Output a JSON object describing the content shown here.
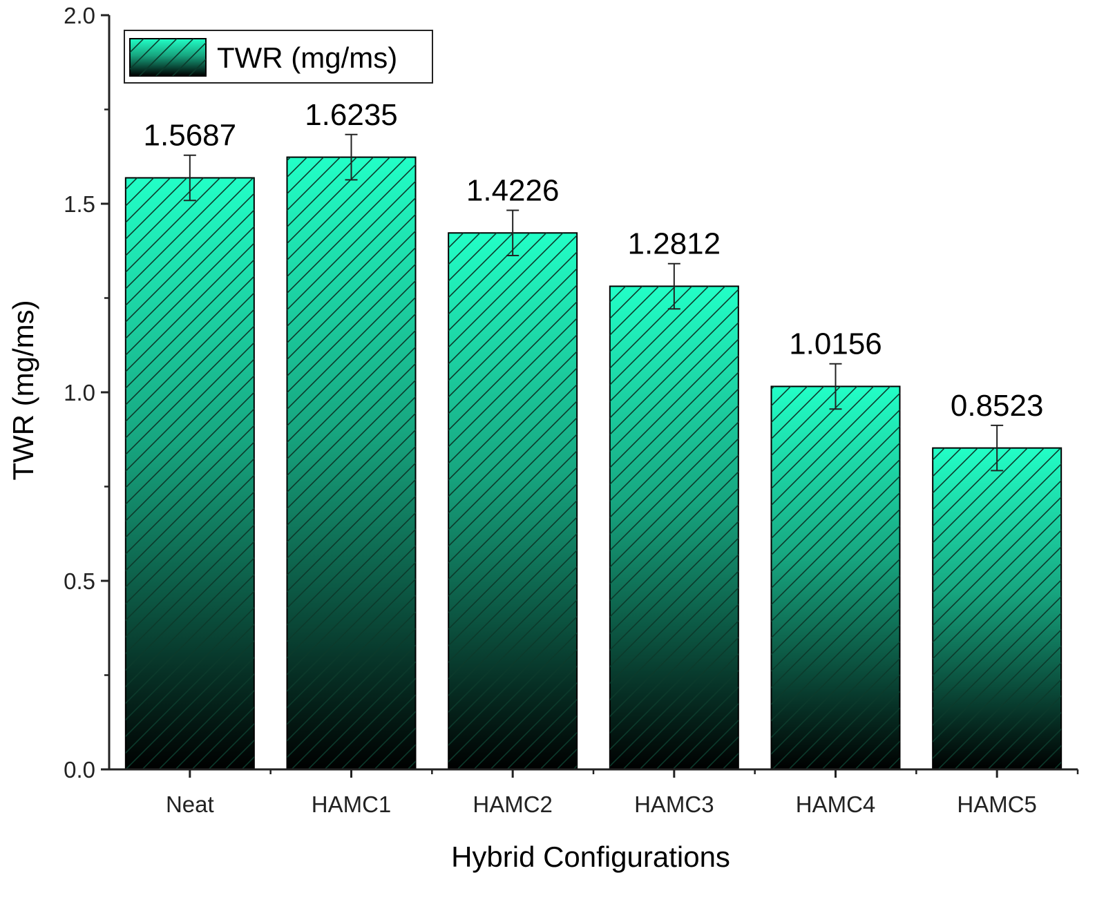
{
  "chart_data": {
    "type": "bar",
    "xlabel": "Hybrid Configurations",
    "ylabel": "TWR (mg/ms)",
    "categories": [
      "Neat",
      "HAMC1",
      "HAMC2",
      "HAMC3",
      "HAMC4",
      "HAMC5"
    ],
    "series": [
      {
        "name": "TWR (mg/ms)",
        "values": [
          1.5687,
          1.6235,
          1.4226,
          1.2812,
          1.0156,
          0.8523
        ],
        "errors": [
          0.06,
          0.06,
          0.06,
          0.06,
          0.06,
          0.06
        ]
      }
    ],
    "data_labels": [
      "1.5687",
      "1.6235",
      "1.4226",
      "1.2812",
      "1.0156",
      "0.8523"
    ],
    "ylim": [
      0,
      2.0
    ],
    "yticks": [
      0.0,
      0.5,
      1.0,
      1.5,
      2.0
    ],
    "ytick_labels": [
      "0.0",
      "0.5",
      "1.0",
      "1.5",
      "2.0"
    ],
    "legend_position": "top-left",
    "grid": false,
    "colors": {
      "bar_top": "#22ffc7",
      "bar_mid": "#17a57f",
      "bar_bottom": "#000000",
      "hatch": "#0b3a2b",
      "axis": "#222222"
    }
  }
}
